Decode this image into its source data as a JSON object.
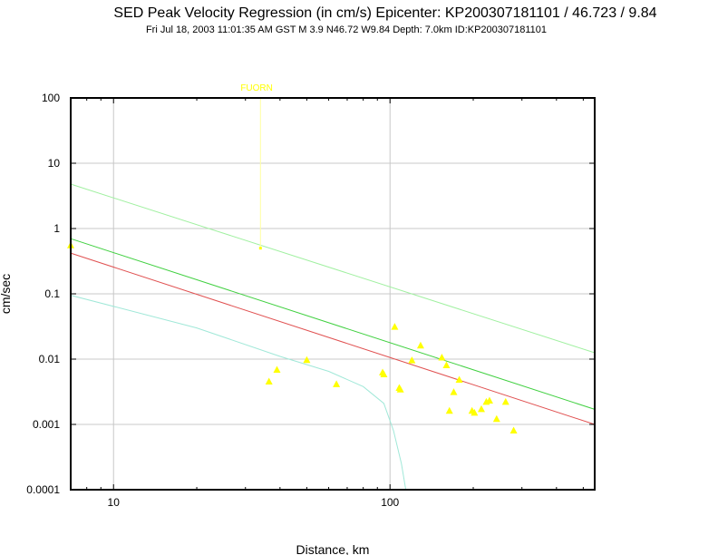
{
  "chart_data": {
    "type": "scatter",
    "title": "SED Peak Velocity Regression (in cm/s) Epicenter: KP200307181101 / 46.723 / 9.84",
    "subtitle": "Fri Jul 18, 2003 11:01:35 AM GST   M 3.9   N46.72 W9.84   Depth: 7.0km   ID:KP200307181101",
    "xlabel": "Distance, km",
    "ylabel": "cm/sec",
    "xscale": "log",
    "yscale": "log",
    "xlim": [
      7,
      550
    ],
    "ylim": [
      0.0001,
      100
    ],
    "grid": true,
    "x_ticks": [
      {
        "value": 10,
        "label": "10"
      },
      {
        "value": 100,
        "label": "100"
      }
    ],
    "y_ticks": [
      {
        "value": 100,
        "label": "100"
      },
      {
        "value": 10,
        "label": "10"
      },
      {
        "value": 1,
        "label": "1"
      },
      {
        "value": 0.1,
        "label": "0.1"
      },
      {
        "value": 0.01,
        "label": "0.01"
      },
      {
        "value": 0.001,
        "label": "0.001"
      },
      {
        "value": 0.0001,
        "label": "0.0001"
      }
    ],
    "colors": {
      "points": "#ffff00",
      "station_line": "#ffffa0",
      "regression": "#e05050",
      "upper_fit": "#40d040",
      "upper_bound": "#a0f0a0",
      "lower_bound": "#a0e8d8",
      "grid": "#c8c8c8"
    },
    "annotations": [
      {
        "text": "FUORN",
        "x": 34,
        "y": 0.5,
        "color": "#ffff00"
      }
    ],
    "points": [
      {
        "x": 7,
        "y": 0.55
      },
      {
        "x": 36.5,
        "y": 0.0045
      },
      {
        "x": 39,
        "y": 0.0068
      },
      {
        "x": 50,
        "y": 0.0096
      },
      {
        "x": 64,
        "y": 0.0041
      },
      {
        "x": 94,
        "y": 0.0062
      },
      {
        "x": 95,
        "y": 0.0058
      },
      {
        "x": 104,
        "y": 0.031
      },
      {
        "x": 108,
        "y": 0.0036
      },
      {
        "x": 109,
        "y": 0.0034
      },
      {
        "x": 120,
        "y": 0.0095
      },
      {
        "x": 129,
        "y": 0.016
      },
      {
        "x": 154,
        "y": 0.0105
      },
      {
        "x": 160,
        "y": 0.008
      },
      {
        "x": 164,
        "y": 0.0016
      },
      {
        "x": 170,
        "y": 0.0031
      },
      {
        "x": 178,
        "y": 0.0048
      },
      {
        "x": 198,
        "y": 0.0016
      },
      {
        "x": 202,
        "y": 0.0015
      },
      {
        "x": 214,
        "y": 0.0017
      },
      {
        "x": 223,
        "y": 0.0022
      },
      {
        "x": 229,
        "y": 0.0023
      },
      {
        "x": 243,
        "y": 0.0012
      },
      {
        "x": 262,
        "y": 0.0022
      },
      {
        "x": 280,
        "y": 0.0008
      }
    ],
    "series": [
      {
        "role": "regression",
        "x": [
          7,
          550
        ],
        "y": [
          0.42,
          0.001
        ]
      },
      {
        "role": "upper_fit",
        "x": [
          7,
          550
        ],
        "y": [
          0.7,
          0.0017
        ]
      },
      {
        "role": "upper_bound",
        "x": [
          7,
          550
        ],
        "y": [
          4.8,
          0.0125
        ]
      },
      {
        "role": "lower_bound",
        "x": [
          7,
          20,
          40,
          60,
          80,
          95,
          103,
          110,
          114
        ],
        "y": [
          0.095,
          0.03,
          0.011,
          0.0065,
          0.0038,
          0.0021,
          0.0008,
          0.00025,
          0.0001
        ]
      },
      {
        "role": "station_line",
        "x": [
          34,
          34
        ],
        "y": [
          100,
          0.5
        ]
      }
    ]
  }
}
